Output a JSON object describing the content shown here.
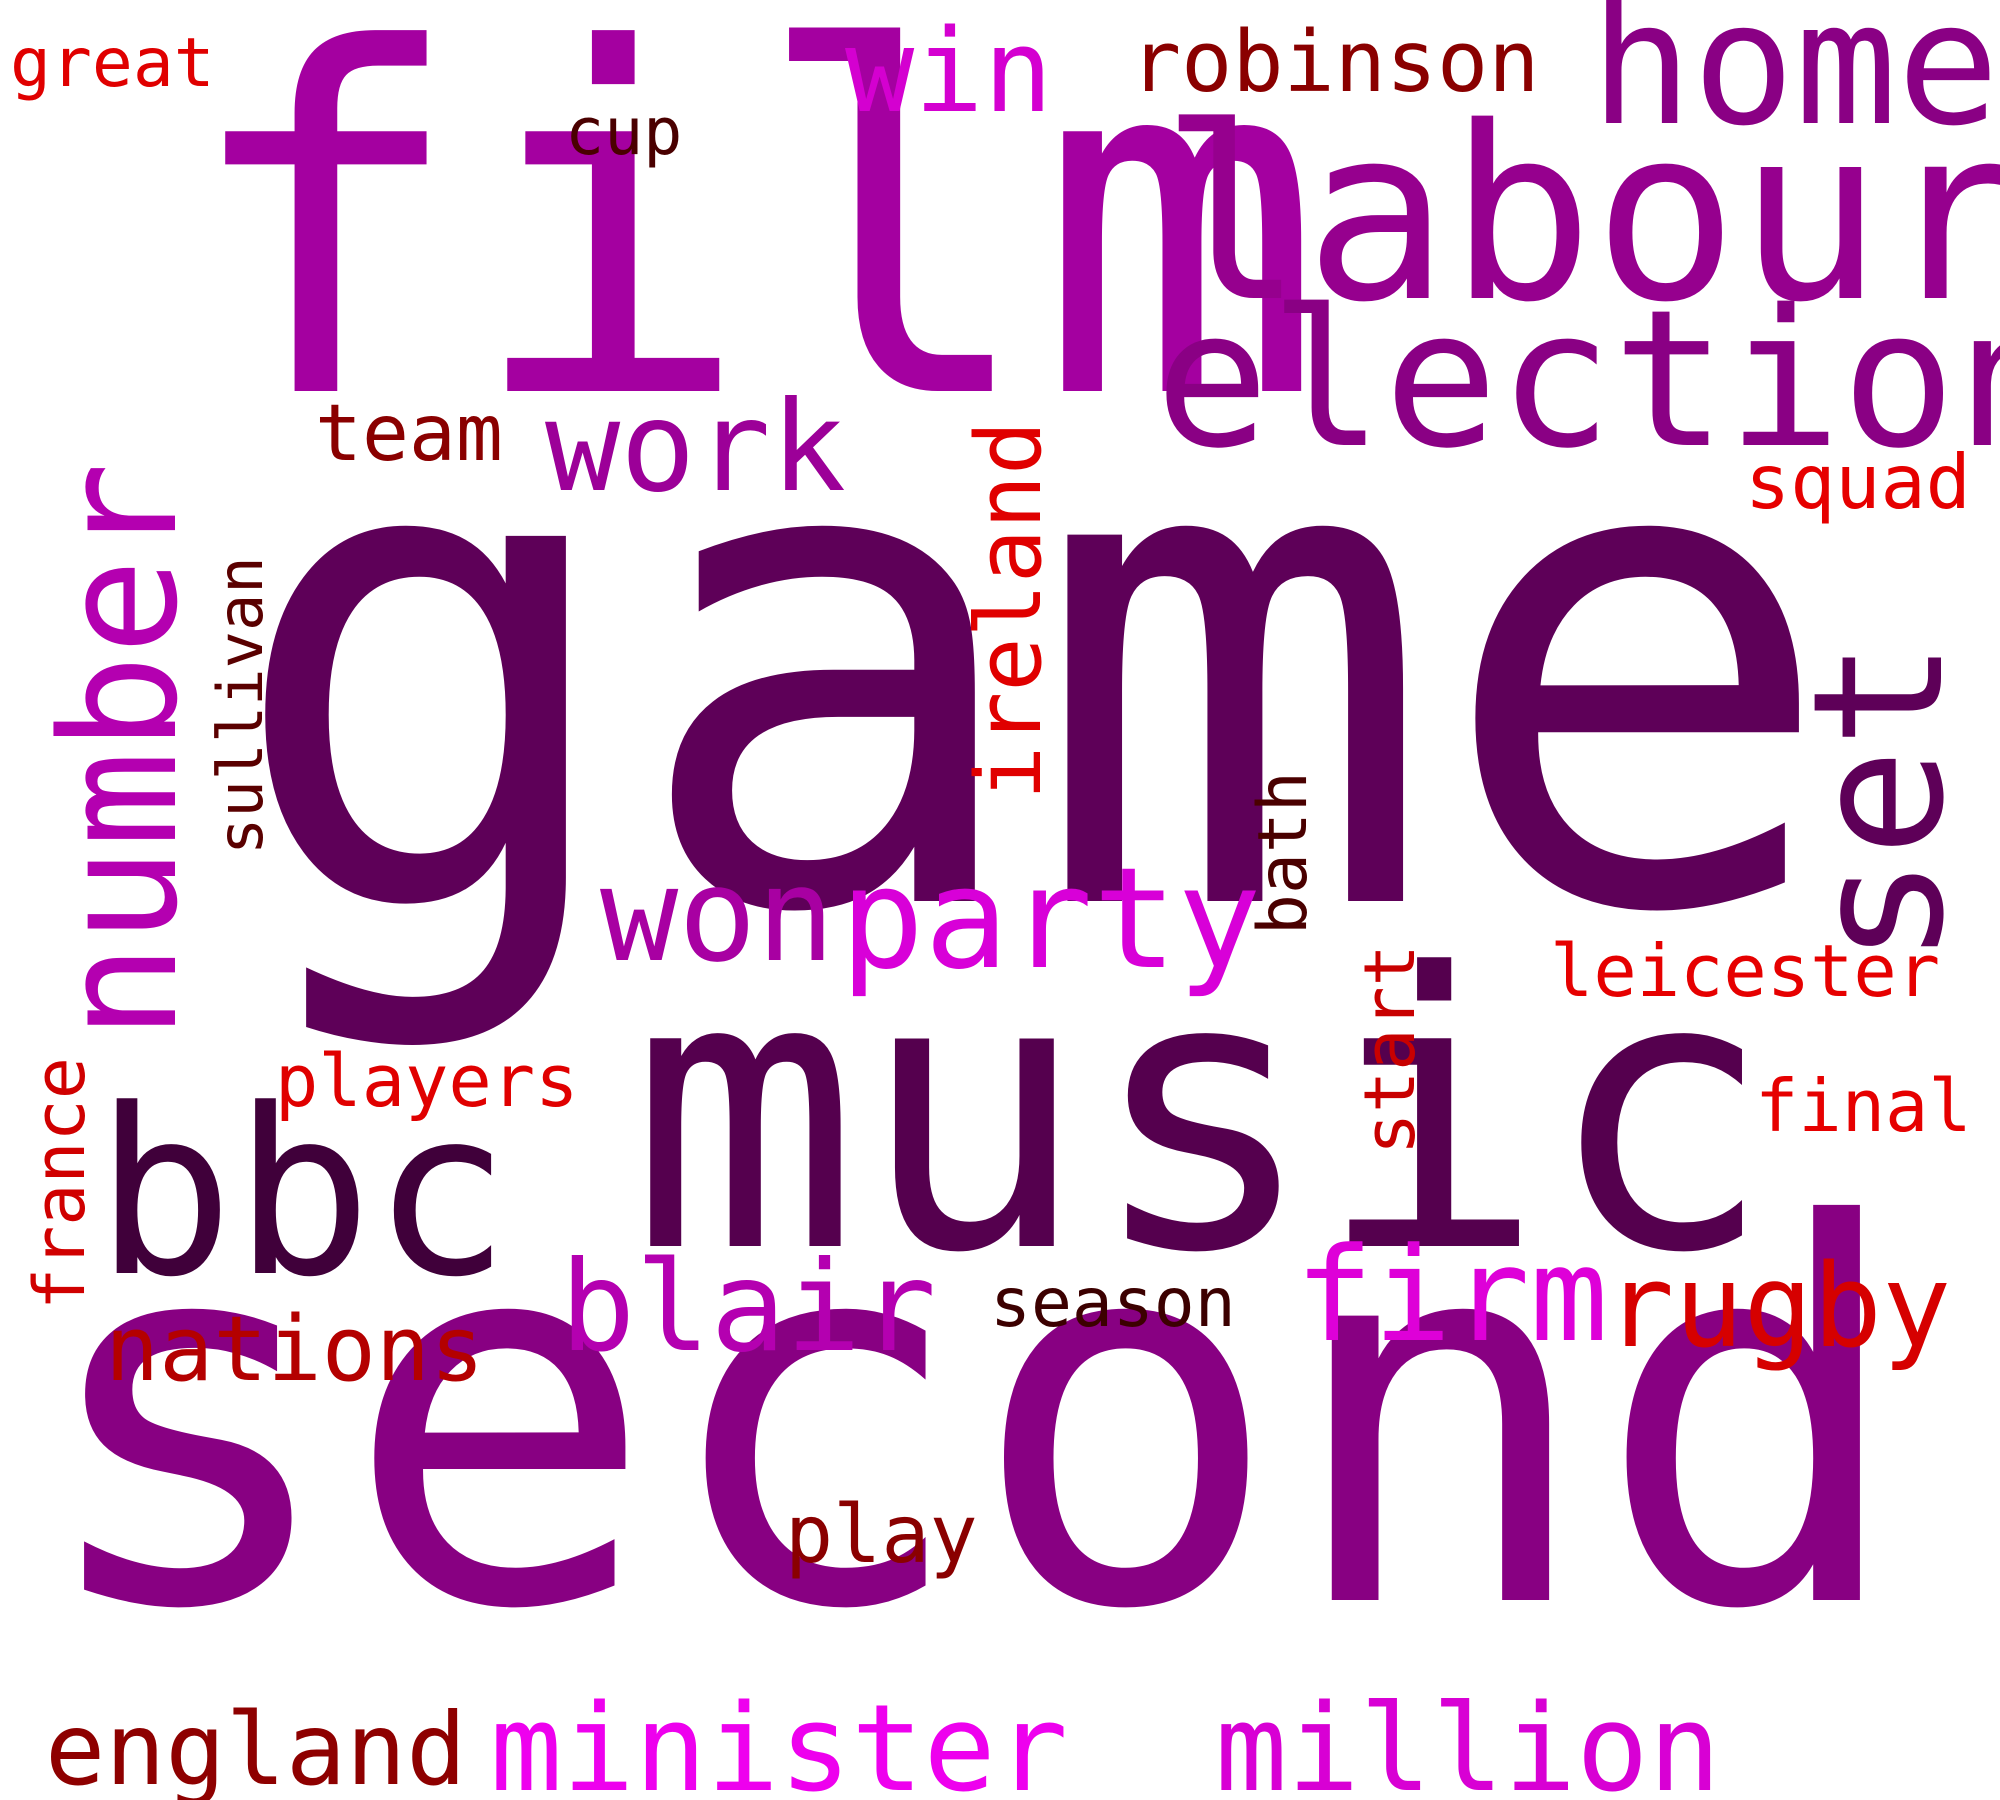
{
  "words": [
    {
      "text": "game",
      "color": "#5e0058",
      "vertical": false
    },
    {
      "text": "second",
      "color": "#880082",
      "vertical": false
    },
    {
      "text": "music",
      "color": "#55004e",
      "vertical": false
    },
    {
      "text": "film",
      "color": "#a400a0",
      "vertical": false
    },
    {
      "text": "number",
      "color": "#b400b0",
      "vertical": true
    },
    {
      "text": "labour",
      "color": "#96008e",
      "vertical": false
    },
    {
      "text": "election",
      "color": "#8a0084",
      "vertical": false
    },
    {
      "text": "home",
      "color": "#8a0084",
      "vertical": false
    },
    {
      "text": "set",
      "color": "#5e0058",
      "vertical": true
    },
    {
      "text": "bbc",
      "color": "#40003a",
      "vertical": false
    },
    {
      "text": "party",
      "color": "#d800d8",
      "vertical": false
    },
    {
      "text": "won",
      "color": "#a800a2",
      "vertical": false
    },
    {
      "text": "work",
      "color": "#9c0098",
      "vertical": false
    },
    {
      "text": "win",
      "color": "#d400d0",
      "vertical": false
    },
    {
      "text": "blair",
      "color": "#b400b0",
      "vertical": false
    },
    {
      "text": "firm",
      "color": "#de00d8",
      "vertical": false
    },
    {
      "text": "minister",
      "color": "#ee00ee",
      "vertical": false
    },
    {
      "text": "million",
      "color": "#d800d4",
      "vertical": false
    },
    {
      "text": "rugby",
      "color": "#d60000",
      "vertical": false
    },
    {
      "text": "england",
      "color": "#8e0000",
      "vertical": false
    },
    {
      "text": "nations",
      "color": "#b40000",
      "vertical": false
    },
    {
      "text": "ireland",
      "color": "#e00000",
      "vertical": true
    },
    {
      "text": "robinson",
      "color": "#8a0000",
      "vertical": false
    },
    {
      "text": "play",
      "color": "#8a0000",
      "vertical": false
    },
    {
      "text": "team",
      "color": "#8a0000",
      "vertical": false
    },
    {
      "text": "squad",
      "color": "#e60000",
      "vertical": false
    },
    {
      "text": "leicester",
      "color": "#e60000",
      "vertical": false
    },
    {
      "text": "final",
      "color": "#e60000",
      "vertical": false
    },
    {
      "text": "players",
      "color": "#e00000",
      "vertical": false
    },
    {
      "text": "great",
      "color": "#e00000",
      "vertical": false
    },
    {
      "text": "france",
      "color": "#d00000",
      "vertical": true
    },
    {
      "text": "start",
      "color": "#c80000",
      "vertical": true
    },
    {
      "text": "season",
      "color": "#3c0000",
      "vertical": false
    },
    {
      "text": "bath",
      "color": "#4a0000",
      "vertical": true
    },
    {
      "text": "sullivan",
      "color": "#5a0000",
      "vertical": true
    },
    {
      "text": "cup",
      "color": "#4a0000",
      "vertical": false
    }
  ]
}
